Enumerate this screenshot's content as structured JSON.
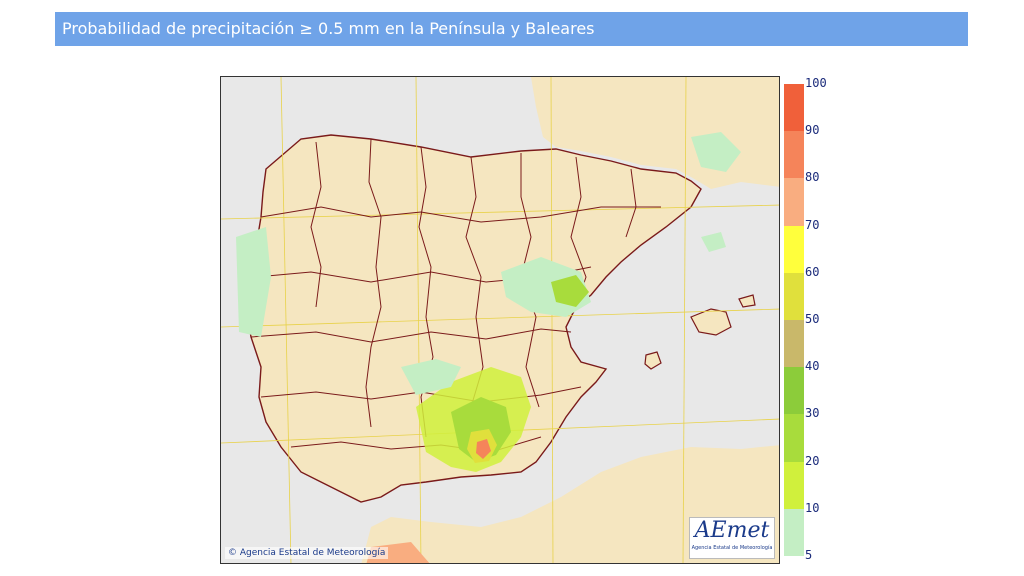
{
  "header": {
    "title": "Probabilidad de precipitación ≥ 0.5 mm en la Península y Baleares"
  },
  "map": {
    "copyright": "© Agencia Estatal de Meteorología",
    "logo_mark": "AEmet",
    "logo_sub": "Agencia Estatal de Meteorología",
    "colors": {
      "sea": "#e8e8e8",
      "land": "#f5e6c0",
      "borders": "#7a1a1a",
      "grid": "#e8d24a"
    }
  },
  "legend": {
    "labels": [
      "100",
      "90",
      "80",
      "70",
      "60",
      "50",
      "40",
      "30",
      "20",
      "10",
      "5"
    ],
    "bands": [
      {
        "from": 90,
        "to": 100,
        "color": "#f0603a"
      },
      {
        "from": 80,
        "to": 90,
        "color": "#f5845a"
      },
      {
        "from": 70,
        "to": 80,
        "color": "#f9ad80"
      },
      {
        "from": 60,
        "to": 70,
        "color": "#ffff3c"
      },
      {
        "from": 50,
        "to": 60,
        "color": "#e0e03c"
      },
      {
        "from": 40,
        "to": 50,
        "color": "#c9b86a"
      },
      {
        "from": 30,
        "to": 40,
        "color": "#8ccc3a"
      },
      {
        "from": 20,
        "to": 30,
        "color": "#a8dc3c"
      },
      {
        "from": 10,
        "to": 20,
        "color": "#d0f03c"
      },
      {
        "from": 5,
        "to": 10,
        "color": "#c4eec4"
      }
    ]
  }
}
